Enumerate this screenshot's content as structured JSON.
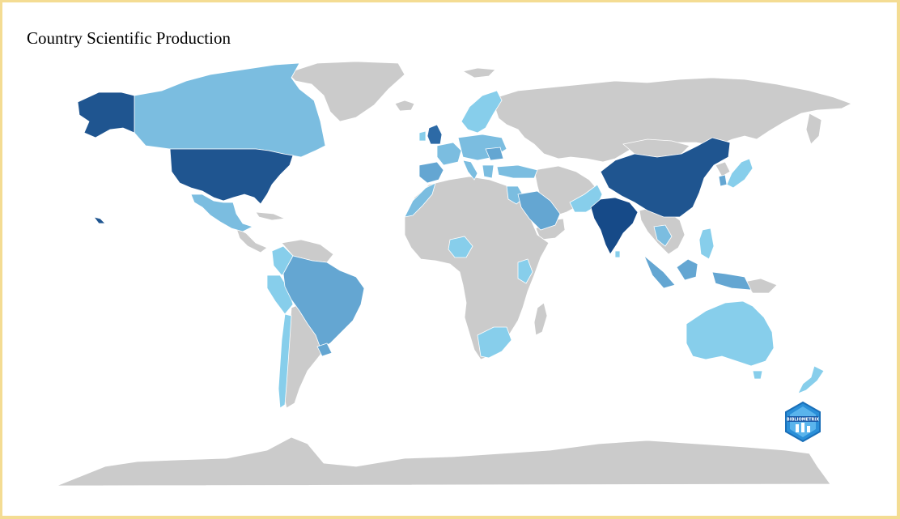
{
  "title": "Country Scientific Production",
  "logo": {
    "text": "BIBLIOMETRIX"
  },
  "colors": {
    "background_border": "#f4dc93",
    "no_data": "#cbcbcb",
    "scale": [
      "#87ceeb",
      "#7bbde0",
      "#64a6d2",
      "#2d6aa6",
      "#1f5590",
      "#164a88"
    ]
  }
}
